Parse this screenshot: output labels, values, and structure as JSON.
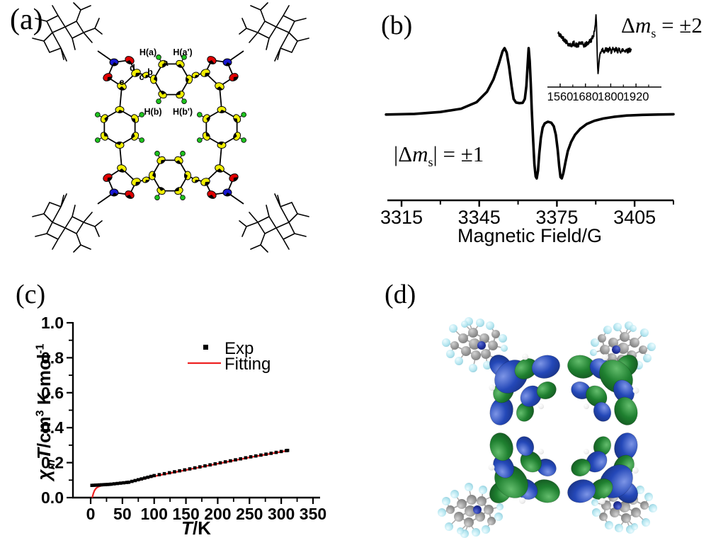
{
  "panels": {
    "a": {
      "label": "(a)",
      "type": "crystal-structure",
      "atom_labels": {
        "Ha": "H(a)",
        "Hap": "H(a')",
        "a": "a",
        "b": "b",
        "c": "c",
        "d": "d",
        "e": "e",
        "Hb": "H(b)",
        "Hbp": "H(b')"
      },
      "atom_colors": {
        "carbon": "#f0ee00",
        "oxygen": "#e00000",
        "nitrogen": "#1818d0",
        "hydrogen": "#1ec21e",
        "bond": "#000000"
      }
    },
    "b": {
      "label": "(b)",
      "type": "epr-spectrum",
      "annotation_allowed": {
        "p1": "|Δ",
        "m": "m",
        "sub": "s",
        "p2": "| = ±1"
      },
      "annotation_halffield": {
        "p1": "Δ",
        "m": "m",
        "sub": "s",
        "p2": " = ±2"
      },
      "xaxis_title": "Magnetic Field/G"
    },
    "c": {
      "label": "(c)",
      "type": "chi-T-plot",
      "legend": {
        "exp": "Exp",
        "fit": "Fitting"
      },
      "ylabel_parts": {
        "chi": "χ",
        "sub_m": "m",
        "T": "T",
        "unit1": "/cm",
        "sup3": "3",
        "unit2": " K mol",
        "supm1": "-1"
      },
      "xlabel_parts": {
        "T": "T",
        "unit": "/K"
      },
      "colors": {
        "exp": "#000000",
        "fit": "#ee2222"
      }
    },
    "d": {
      "label": "(d)",
      "type": "spin-density-map",
      "colors": {
        "positive_lobe": "#2448b8",
        "negative_lobe": "#1f8030",
        "carbon": "#9a9a9a",
        "hydrogen": "#b5e6f0"
      }
    }
  },
  "chart_data": [
    {
      "id": "epr_main",
      "type": "line",
      "xlabel": "Magnetic Field/G",
      "x_range": [
        3309,
        3420
      ],
      "xticks": [
        3315,
        3345,
        3375,
        3405
      ],
      "minor_xticks": [
        3330,
        3360,
        3390,
        3420
      ],
      "points": [
        [
          3309,
          -0.02
        ],
        [
          3320,
          -0.01
        ],
        [
          3330,
          0.02
        ],
        [
          3338,
          0.07
        ],
        [
          3344,
          0.17
        ],
        [
          3348,
          0.33
        ],
        [
          3350.5,
          0.52
        ],
        [
          3352.5,
          0.75
        ],
        [
          3354,
          0.95
        ],
        [
          3354.8,
          1.0
        ],
        [
          3355.6,
          0.93
        ],
        [
          3356.5,
          0.72
        ],
        [
          3357.5,
          0.42
        ],
        [
          3358.3,
          0.22
        ],
        [
          3359.2,
          0.165
        ],
        [
          3360.5,
          0.155
        ],
        [
          3361.8,
          0.16
        ],
        [
          3362.6,
          0.22
        ],
        [
          3363.2,
          0.42
        ],
        [
          3363.7,
          0.75
        ],
        [
          3364.1,
          1.0
        ],
        [
          3364.5,
          0.8
        ],
        [
          3364.9,
          0.45
        ],
        [
          3365.3,
          0.05
        ],
        [
          3365.8,
          -0.4
        ],
        [
          3366.3,
          -0.78
        ],
        [
          3366.8,
          -0.97
        ],
        [
          3367.2,
          -1.0
        ],
        [
          3367.7,
          -0.88
        ],
        [
          3368.2,
          -0.62
        ],
        [
          3368.8,
          -0.38
        ],
        [
          3369.5,
          -0.22
        ],
        [
          3370.3,
          -0.155
        ],
        [
          3371.5,
          -0.13
        ],
        [
          3372.8,
          -0.145
        ],
        [
          3373.8,
          -0.2
        ],
        [
          3374.6,
          -0.33
        ],
        [
          3375.3,
          -0.56
        ],
        [
          3375.9,
          -0.82
        ],
        [
          3376.4,
          -0.98
        ],
        [
          3376.9,
          -1.0
        ],
        [
          3377.5,
          -0.92
        ],
        [
          3378.3,
          -0.75
        ],
        [
          3379.2,
          -0.58
        ],
        [
          3380.5,
          -0.44
        ],
        [
          3382,
          -0.33
        ],
        [
          3384,
          -0.24
        ],
        [
          3386.5,
          -0.165
        ],
        [
          3389.5,
          -0.115
        ],
        [
          3393,
          -0.08
        ],
        [
          3397,
          -0.055
        ],
        [
          3402,
          -0.035
        ],
        [
          3408,
          -0.025
        ],
        [
          3414,
          -0.02
        ],
        [
          3420,
          -0.015
        ]
      ]
    },
    {
      "id": "epr_inset",
      "type": "line",
      "x_range": [
        1550,
        1900
      ],
      "xticks": [
        1560,
        1680,
        1800,
        1920
      ],
      "minor_xticks": [
        1620,
        1740,
        1860,
        1980
      ],
      "noise_amplitude": 0.1,
      "points": [
        [
          1550,
          0.3
        ],
        [
          1556,
          0.22
        ],
        [
          1562,
          0.18
        ],
        [
          1570,
          0.12
        ],
        [
          1578,
          0.05
        ],
        [
          1586,
          -0.02
        ],
        [
          1594,
          -0.1
        ],
        [
          1602,
          -0.16
        ],
        [
          1610,
          -0.2
        ],
        [
          1618,
          -0.16
        ],
        [
          1626,
          -0.12
        ],
        [
          1634,
          -0.18
        ],
        [
          1642,
          -0.22
        ],
        [
          1650,
          -0.16
        ],
        [
          1658,
          -0.1
        ],
        [
          1666,
          -0.16
        ],
        [
          1674,
          -0.2
        ],
        [
          1682,
          -0.16
        ],
        [
          1690,
          -0.12
        ],
        [
          1698,
          -0.06
        ],
        [
          1706,
          0.0
        ],
        [
          1712,
          0.08
        ],
        [
          1718,
          0.2
        ],
        [
          1723,
          0.38
        ],
        [
          1727,
          0.68
        ],
        [
          1730,
          1.0
        ],
        [
          1732,
          0.7
        ],
        [
          1734,
          0.1
        ],
        [
          1736,
          -0.6
        ],
        [
          1738,
          -1.1
        ],
        [
          1740,
          -1.35
        ],
        [
          1743,
          -1.05
        ],
        [
          1746,
          -0.75
        ],
        [
          1750,
          -0.52
        ],
        [
          1755,
          -0.42
        ],
        [
          1762,
          -0.36
        ],
        [
          1770,
          -0.44
        ],
        [
          1778,
          -0.36
        ],
        [
          1786,
          -0.42
        ],
        [
          1794,
          -0.36
        ],
        [
          1802,
          -0.44
        ],
        [
          1810,
          -0.38
        ],
        [
          1818,
          -0.44
        ],
        [
          1826,
          -0.36
        ],
        [
          1834,
          -0.42
        ],
        [
          1842,
          -0.38
        ],
        [
          1850,
          -0.44
        ],
        [
          1858,
          -0.38
        ],
        [
          1866,
          -0.42
        ],
        [
          1874,
          -0.38
        ],
        [
          1882,
          -0.42
        ],
        [
          1890,
          -0.38
        ],
        [
          1898,
          -0.4
        ]
      ]
    },
    {
      "id": "chiT",
      "type": "scatter",
      "xlabel": "T/K",
      "ylabel": "χmT/cm3 K mol-1",
      "xlim": [
        0,
        350
      ],
      "ylim": [
        0.0,
        1.0
      ],
      "xticks": [
        0,
        50,
        100,
        150,
        200,
        250,
        300,
        350
      ],
      "yticks": [
        "0.0",
        "0.2",
        "0.4",
        "0.6",
        "0.8",
        "1.0"
      ],
      "series": [
        {
          "name": "Exp",
          "type": "scatter",
          "points": [
            [
              2,
              0.07
            ],
            [
              5,
              0.0706
            ],
            [
              8,
              0.0713
            ],
            [
              11,
              0.0719
            ],
            [
              14,
              0.0726
            ],
            [
              17,
              0.0732
            ],
            [
              20,
              0.0739
            ],
            [
              23,
              0.0745
            ],
            [
              26,
              0.0751
            ],
            [
              29,
              0.0758
            ],
            [
              32,
              0.0768
            ],
            [
              37,
              0.0788
            ],
            [
              42,
              0.0808
            ],
            [
              47,
              0.0828
            ],
            [
              52,
              0.0848
            ],
            [
              57,
              0.0868
            ],
            [
              60,
              0.088
            ],
            [
              65,
              0.0928
            ],
            [
              70,
              0.0975
            ],
            [
              75,
              0.1023
            ],
            [
              80,
              0.107
            ],
            [
              85,
              0.1118
            ],
            [
              90,
              0.1165
            ],
            [
              95,
              0.1213
            ],
            [
              100,
              0.126
            ],
            [
              108,
              0.1314
            ],
            [
              116,
              0.1369
            ],
            [
              124,
              0.1423
            ],
            [
              132,
              0.1478
            ],
            [
              140,
              0.1532
            ],
            [
              148,
              0.1586
            ],
            [
              156,
              0.1643
            ],
            [
              164,
              0.1701
            ],
            [
              172,
              0.1758
            ],
            [
              180,
              0.1816
            ],
            [
              188,
              0.1874
            ],
            [
              196,
              0.1931
            ],
            [
              204,
              0.1989
            ],
            [
              212,
              0.2046
            ],
            [
              220,
              0.2104
            ],
            [
              228,
              0.2162
            ],
            [
              236,
              0.2219
            ],
            [
              244,
              0.2277
            ],
            [
              252,
              0.2333
            ],
            [
              260,
              0.2383
            ],
            [
              268,
              0.2434
            ],
            [
              276,
              0.2485
            ],
            [
              284,
              0.2535
            ],
            [
              292,
              0.2586
            ],
            [
              300,
              0.2637
            ],
            [
              308,
              0.2687
            ],
            [
              310,
              0.27
            ]
          ]
        },
        {
          "name": "Fitting",
          "type": "line",
          "points": [
            [
              2.5,
              0.0
            ],
            [
              3.5,
              0.013
            ],
            [
              4.5,
              0.026
            ],
            [
              6,
              0.04
            ],
            [
              8,
              0.051
            ],
            [
              10,
              0.058
            ],
            [
              13,
              0.0635
            ],
            [
              16,
              0.0672
            ],
            [
              20,
              0.0706
            ],
            [
              25,
              0.0736
            ],
            [
              30,
              0.0762
            ],
            [
              35,
              0.0785
            ],
            [
              40,
              0.0808
            ],
            [
              45,
              0.083
            ],
            [
              50,
              0.0852
            ],
            [
              55,
              0.0875
            ],
            [
              60,
              0.09
            ],
            [
              70,
              0.0955
            ],
            [
              80,
              0.1035
            ],
            [
              90,
              0.1125
            ],
            [
              100,
              0.122
            ],
            [
              110,
              0.1295
            ],
            [
              120,
              0.1365
            ],
            [
              130,
              0.1437
            ],
            [
              140,
              0.1508
            ],
            [
              150,
              0.158
            ],
            [
              160,
              0.1652
            ],
            [
              170,
              0.1724
            ],
            [
              180,
              0.1796
            ],
            [
              190,
              0.1868
            ],
            [
              200,
              0.194
            ],
            [
              210,
              0.2012
            ],
            [
              220,
              0.2084
            ],
            [
              230,
              0.2156
            ],
            [
              240,
              0.2228
            ],
            [
              250,
              0.23
            ],
            [
              260,
              0.2365
            ],
            [
              270,
              0.2429
            ],
            [
              280,
              0.2494
            ],
            [
              290,
              0.2558
            ],
            [
              300,
              0.2622
            ],
            [
              312,
              0.27
            ]
          ]
        }
      ]
    }
  ]
}
